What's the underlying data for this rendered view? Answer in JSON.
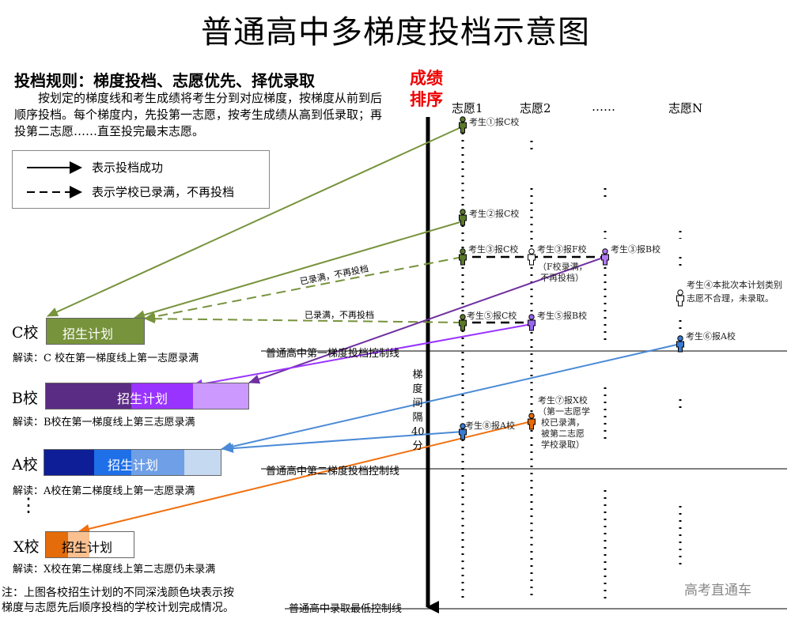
{
  "title": "普通高中多梯度投档示意图",
  "rules": {
    "heading": "投档规则：梯度投档、志愿优先、择优录取",
    "body": "按划定的梯度线和考生成绩将考生分到对应梯度，按梯度从前到后顺序投档。每个梯度内，先投第一志愿，按考生成绩从高到低录取；再投第二志愿……直至投完最末志愿。"
  },
  "legend": {
    "solid": "表示投档成功",
    "dashed": "表示学校已录满，不再投档"
  },
  "rank_label": "成绩排序",
  "columns": [
    "志愿1",
    "志愿2",
    "……",
    "志愿N"
  ],
  "control_lines": {
    "first": "普通高中第一梯度投档控制线",
    "second": "普通高中第二梯度投档控制线",
    "min": "普通高中录取最低控制线"
  },
  "gap_label": "梯度间隔40分",
  "schools": [
    {
      "name": "C校",
      "plan": "招生计划",
      "interp": "解读：C 校在第一梯度线上第一志愿录满",
      "colors": [
        "#77933c"
      ]
    },
    {
      "name": "B校",
      "plan": "招生计划",
      "interp": "解读：B校在第一梯度线上第三志愿录满",
      "colors": [
        "#5b2c83",
        "#9933ff",
        "#cc99ff"
      ]
    },
    {
      "name": "A校",
      "plan": "招生计划",
      "interp": "解读：A校在第二梯度线上第一志愿录满",
      "colors": [
        "#0e1e96",
        "#1f6fe8",
        "#6f9fe6",
        "#c5d9f1"
      ]
    },
    {
      "name": "X校",
      "plan": "招生计划",
      "interp": "解读：X校在第二梯度线上第二志愿仍未录满",
      "colors": [
        "#e46c0a",
        "#fac090",
        "#ffffff"
      ]
    }
  ],
  "ellipsis_vertical": "⋮",
  "candidates": {
    "c1": "考生①报C校",
    "c2": "考生②报C校",
    "c3c": "考生③报C校",
    "c3f": "考生③报F校",
    "c3f_note1": "（F校录满，",
    "c3f_note2": "不再投档）",
    "c3b": "考生③报B校",
    "c4_1": "考生④本批次本计划类别",
    "c4_2": "志愿不合理，未录取。",
    "c5c": "考生⑤报C校",
    "c5b": "考生⑤报B校",
    "c6": "考生⑥报A校",
    "c7_lines": [
      "考生⑦报X校",
      "（第一志愿学",
      "校已录满，",
      "被第二志愿",
      "学校录取）"
    ],
    "c8": "考生⑧报A校"
  },
  "full_label": "已录满，不再投档",
  "note": [
    "注：上图各校招生计划的不同深浅颜色块表示按",
    "梯度与志愿先后顺序投档的学校计划完成情况。"
  ],
  "watermark": "高考直通车",
  "colors": {
    "green": "#77933c",
    "purple": "#9933ff",
    "dark_purple": "#7030a0",
    "blue": "#4a8ad6",
    "orange": "#f07010",
    "rank": "#e00000"
  }
}
